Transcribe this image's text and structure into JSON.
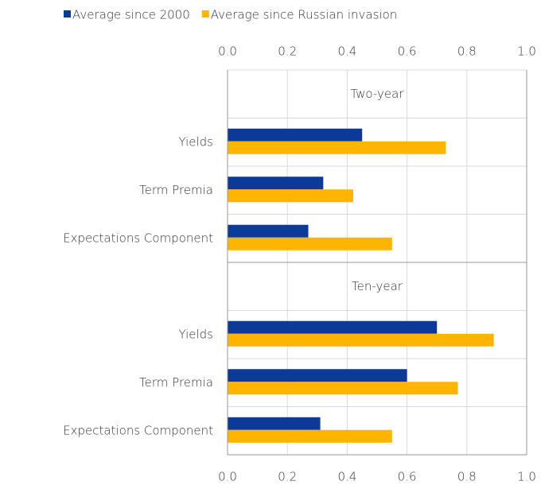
{
  "chart_data": {
    "type": "bar",
    "orientation": "horizontal",
    "series": [
      {
        "name": "Average since 2000",
        "color": "#0c3a99"
      },
      {
        "name": "Average since Russian invasion",
        "color": "#ffb400"
      }
    ],
    "xlim": [
      0,
      1
    ],
    "xticks": [
      {
        "value": 0,
        "label": "0.0"
      },
      0.2,
      0.4,
      0.6,
      0.8,
      {
        "value": 1,
        "label": "1.0"
      }
    ],
    "grid": true,
    "panels": [
      {
        "title": "Two-year",
        "categories": [
          "Yields",
          "Term Premia",
          "Expectations Component"
        ],
        "values": [
          [
            0.45,
            0.32,
            0.27
          ],
          [
            0.73,
            0.42,
            0.55
          ]
        ]
      },
      {
        "title": "Ten-year",
        "categories": [
          "Yields",
          "Term Premia",
          "Expectations Component"
        ],
        "values": [
          [
            0.7,
            0.6,
            0.31
          ],
          [
            0.89,
            0.77,
            0.55
          ]
        ]
      }
    ]
  }
}
